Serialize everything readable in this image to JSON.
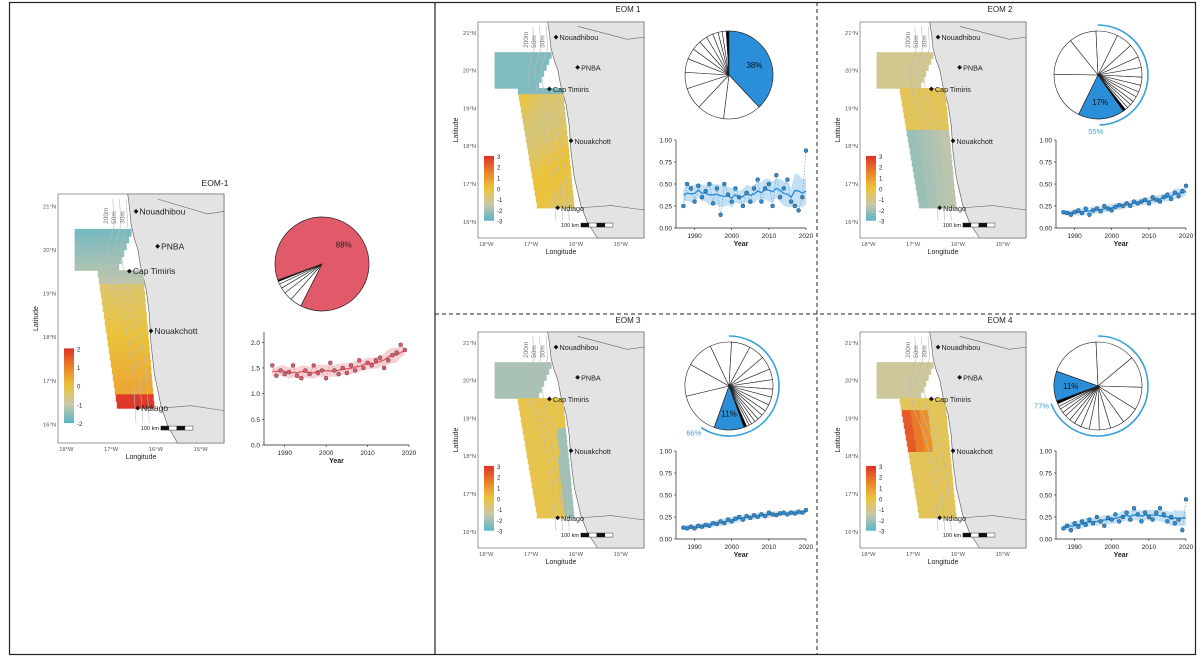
{
  "panels": [
    {
      "id": "eom1",
      "title": "EOM-1",
      "map": {
        "places": [
          "Nouadhibou",
          "PNBA",
          "Cap Timiris",
          "Nouakchott",
          "Ndiago"
        ],
        "depths": [
          "200m",
          "50m",
          "30m"
        ],
        "lat_ticks": [
          "21°N",
          "20°N",
          "19°N",
          "18°N",
          "17°N",
          "16°N"
        ],
        "lon_ticks": [
          "18°W",
          "17°W",
          "16°W",
          "15°W"
        ],
        "xlabel": "Longitude",
        "ylabel": "Latitude",
        "colorbar_ticks": [
          "2",
          "1",
          "0",
          "-1",
          "-2"
        ],
        "scale_label": "100 km"
      },
      "pie": {
        "highlight_pct": 88,
        "label": "88%",
        "color": "#e05a6a",
        "highlight_start_deg": 250,
        "other_slices_pct": [
          4,
          3,
          2,
          1.5,
          1,
          0.5
        ],
        "arc_label": ""
      },
      "chart_data": {
        "type": "line",
        "xlabel": "Year",
        "ylabel": "",
        "xlim": [
          1985,
          2020
        ],
        "ylim": [
          0,
          2.2
        ],
        "x_ticks": [
          1990,
          2000,
          2010,
          2020
        ],
        "y_ticks": [
          0.0,
          0.5,
          1.0,
          1.5,
          2.0
        ],
        "y_tick_labels": [
          "0.0",
          "0.5",
          "1.0",
          "1.5",
          "2.0"
        ],
        "color": "#e05a6a",
        "x": [
          1987,
          1988,
          1989,
          1990,
          1991,
          1992,
          1993,
          1994,
          1995,
          1996,
          1997,
          1998,
          1999,
          2000,
          2001,
          2002,
          2003,
          2004,
          2005,
          2006,
          2007,
          2008,
          2009,
          2010,
          2011,
          2012,
          2013,
          2014,
          2015,
          2016,
          2017,
          2018,
          2019
        ],
        "y": [
          1.55,
          1.35,
          1.45,
          1.38,
          1.42,
          1.55,
          1.35,
          1.3,
          1.45,
          1.38,
          1.55,
          1.4,
          1.45,
          1.3,
          1.6,
          1.45,
          1.38,
          1.5,
          1.4,
          1.55,
          1.45,
          1.65,
          1.5,
          1.6,
          1.55,
          1.65,
          1.7,
          1.5,
          1.65,
          1.75,
          1.8,
          1.95,
          1.85
        ]
      }
    },
    {
      "id": "eom2",
      "title": "EOM 1",
      "map": {
        "places": [
          "Nouadhibou",
          "PNBA",
          "Cap Timiris",
          "Nouakchott",
          "Ndiago"
        ],
        "depths": [
          "200m",
          "50m",
          "30m"
        ],
        "lat_ticks": [
          "21°N",
          "20°N",
          "19°N",
          "18°N",
          "17°N",
          "16°N"
        ],
        "lon_ticks": [
          "18°W",
          "17°W",
          "16°W",
          "15°W"
        ],
        "xlabel": "Longitude",
        "ylabel": "Latitude",
        "colorbar_ticks": [
          "3",
          "2",
          "1",
          "0",
          "-1",
          "-2",
          "-3"
        ],
        "scale_label": "100 km"
      },
      "pie": {
        "highlight_pct": 38,
        "label": "38%",
        "color": "#2a8fd8",
        "highlight_start_deg": 0,
        "other_slices_pct": [
          14,
          10,
          8,
          6,
          5,
          4,
          3.5,
          3,
          2.5,
          2,
          1.5,
          1.5,
          1
        ],
        "arc_label": ""
      },
      "chart_data": {
        "type": "line",
        "xlabel": "Year",
        "ylabel": "",
        "xlim": [
          1985,
          2020
        ],
        "ylim": [
          0,
          1.0
        ],
        "x_ticks": [
          1990,
          2000,
          2010,
          2020
        ],
        "y_ticks": [
          0.0,
          0.25,
          0.5,
          0.75,
          1.0
        ],
        "y_tick_labels": [
          "0.00",
          "0.25",
          "0.50",
          "0.75",
          "1.00"
        ],
        "color": "#2a8fd8",
        "x": [
          1987,
          1988,
          1989,
          1990,
          1991,
          1992,
          1993,
          1994,
          1995,
          1996,
          1997,
          1998,
          1999,
          2000,
          2001,
          2002,
          2003,
          2004,
          2005,
          2006,
          2007,
          2008,
          2009,
          2010,
          2011,
          2012,
          2013,
          2014,
          2015,
          2016,
          2017,
          2018,
          2019,
          2020
        ],
        "y": [
          0.25,
          0.5,
          0.45,
          0.3,
          0.48,
          0.35,
          0.42,
          0.5,
          0.28,
          0.45,
          0.15,
          0.5,
          0.38,
          0.3,
          0.45,
          0.35,
          0.25,
          0.4,
          0.3,
          0.45,
          0.55,
          0.3,
          0.45,
          0.5,
          0.25,
          0.6,
          0.35,
          0.45,
          0.55,
          0.3,
          0.25,
          0.2,
          0.35,
          0.88
        ]
      }
    },
    {
      "id": "eom3",
      "title": "EOM 2",
      "map": {
        "places": [
          "Nouadhibou",
          "PNBA",
          "Cap Timiris",
          "Nouakchott",
          "Ndiago"
        ],
        "depths": [
          "200m",
          "50m",
          "30m"
        ],
        "lat_ticks": [
          "21°N",
          "20°N",
          "19°N",
          "18°N",
          "17°N",
          "16°N"
        ],
        "lon_ticks": [
          "18°W",
          "17°W",
          "16°W",
          "15°W"
        ],
        "xlabel": "Longitude",
        "ylabel": "Latitude",
        "colorbar_ticks": [
          "3",
          "2",
          "1",
          "0",
          "-1",
          "-2",
          "-3"
        ],
        "scale_label": "100 km"
      },
      "pie": {
        "highlight_pct": 17,
        "label": "17%",
        "color": "#2a8fd8",
        "highlight_start_deg": 145,
        "other_slices_pct": [
          18,
          14,
          10,
          8,
          6,
          5,
          4,
          3.5,
          3,
          2.5,
          2,
          2,
          1.5,
          1.5,
          1,
          1
        ],
        "arc_label": "55%",
        "arc_start_deg": 0,
        "arc_pct": 55
      },
      "chart_data": {
        "type": "line",
        "xlabel": "Year",
        "ylabel": "",
        "xlim": [
          1985,
          2020
        ],
        "ylim": [
          0,
          1.0
        ],
        "x_ticks": [
          1990,
          2000,
          2010,
          2020
        ],
        "y_ticks": [
          0.0,
          0.25,
          0.5,
          0.75,
          1.0
        ],
        "y_tick_labels": [
          "0.00",
          "0.25",
          "0.50",
          "0.75",
          "1.00"
        ],
        "color": "#2a8fd8",
        "x": [
          1987,
          1988,
          1989,
          1990,
          1991,
          1992,
          1993,
          1994,
          1995,
          1996,
          1997,
          1998,
          1999,
          2000,
          2001,
          2002,
          2003,
          2004,
          2005,
          2006,
          2007,
          2008,
          2009,
          2010,
          2011,
          2012,
          2013,
          2014,
          2015,
          2016,
          2017,
          2018,
          2019,
          2020
        ],
        "y": [
          0.18,
          0.17,
          0.15,
          0.18,
          0.2,
          0.17,
          0.22,
          0.15,
          0.2,
          0.22,
          0.19,
          0.25,
          0.22,
          0.2,
          0.24,
          0.26,
          0.25,
          0.28,
          0.25,
          0.3,
          0.28,
          0.3,
          0.32,
          0.28,
          0.35,
          0.32,
          0.3,
          0.35,
          0.38,
          0.33,
          0.4,
          0.36,
          0.42,
          0.48
        ]
      }
    },
    {
      "id": "eom4",
      "title": "EOM 3",
      "map": {
        "places": [
          "Nouadhibou",
          "PNBA",
          "Cap Timiris",
          "Nouakchott",
          "Ndiago"
        ],
        "depths": [
          "200m",
          "50m",
          "30m"
        ],
        "lat_ticks": [
          "21°N",
          "20°N",
          "19°N",
          "18°N",
          "17°N",
          "16°N"
        ],
        "lon_ticks": [
          "18°W",
          "17°W",
          "16°W",
          "15°W"
        ],
        "xlabel": "Longitude",
        "ylabel": "Latitude",
        "colorbar_ticks": [
          "3",
          "2",
          "1",
          "0",
          "-1",
          "-2",
          "-3"
        ],
        "scale_label": "100 km"
      },
      "pie": {
        "highlight_pct": 11,
        "label": "11%",
        "color": "#2a8fd8",
        "highlight_start_deg": 160,
        "other_slices_pct": [
          16,
          12,
          10,
          8,
          7,
          6,
          5,
          4,
          3.5,
          3,
          3,
          2.5,
          2,
          2,
          1.5,
          1.5,
          1,
          1,
          1
        ],
        "arc_label": "66%",
        "arc_start_deg": 0,
        "arc_pct": 66
      },
      "chart_data": {
        "type": "line",
        "xlabel": "Year",
        "ylabel": "",
        "xlim": [
          1985,
          2020
        ],
        "ylim": [
          0,
          1.0
        ],
        "x_ticks": [
          1990,
          2000,
          2010,
          2020
        ],
        "y_ticks": [
          0.0,
          0.25,
          0.5,
          0.75,
          1.0
        ],
        "y_tick_labels": [
          "0.00",
          "0.25",
          "0.50",
          "0.75",
          "1.00"
        ],
        "color": "#2a8fd8",
        "x": [
          1987,
          1988,
          1989,
          1990,
          1991,
          1992,
          1993,
          1994,
          1995,
          1996,
          1997,
          1998,
          1999,
          2000,
          2001,
          2002,
          2003,
          2004,
          2005,
          2006,
          2007,
          2008,
          2009,
          2010,
          2011,
          2012,
          2013,
          2014,
          2015,
          2016,
          2017,
          2018,
          2019,
          2020
        ],
        "y": [
          0.13,
          0.12,
          0.14,
          0.12,
          0.15,
          0.14,
          0.16,
          0.15,
          0.18,
          0.17,
          0.2,
          0.18,
          0.22,
          0.2,
          0.23,
          0.25,
          0.22,
          0.26,
          0.24,
          0.27,
          0.25,
          0.28,
          0.26,
          0.3,
          0.28,
          0.27,
          0.29,
          0.3,
          0.28,
          0.3,
          0.29,
          0.31,
          0.3,
          0.33
        ]
      }
    },
    {
      "id": "eom5",
      "title": "EOM 4",
      "map": {
        "places": [
          "Nouadhibou",
          "PNBA",
          "Cap Timiris",
          "Nouakchott",
          "Ndiago"
        ],
        "depths": [
          "200m",
          "50m",
          "30m"
        ],
        "lat_ticks": [
          "21°N",
          "20°N",
          "19°N",
          "18°N",
          "17°N",
          "16°N"
        ],
        "lon_ticks": [
          "18°W",
          "17°W",
          "16°W",
          "15°W"
        ],
        "xlabel": "Longitude",
        "ylabel": "Latitude",
        "colorbar_ticks": [
          "3",
          "2",
          "1",
          "0",
          "-1",
          "-2",
          "-3"
        ],
        "scale_label": "100 km"
      },
      "pie": {
        "highlight_pct": 11,
        "label": "11%",
        "color": "#2a8fd8",
        "highlight_start_deg": 250,
        "other_slices_pct": [
          18,
          14,
          11,
          8,
          6,
          5,
          4,
          3.5,
          3,
          2.5,
          2,
          2,
          1.5,
          1.5,
          1,
          1,
          1
        ],
        "arc_label": "77%",
        "arc_start_deg": 0,
        "arc_pct": 77
      },
      "chart_data": {
        "type": "line",
        "xlabel": "Year",
        "ylabel": "",
        "xlim": [
          1985,
          2020
        ],
        "ylim": [
          0,
          1.0
        ],
        "x_ticks": [
          1990,
          2000,
          2010,
          2020
        ],
        "y_ticks": [
          0.0,
          0.25,
          0.5,
          0.75,
          1.0
        ],
        "y_tick_labels": [
          "0.00",
          "0.25",
          "0.50",
          "0.75",
          "1.00"
        ],
        "color": "#2a8fd8",
        "x": [
          1987,
          1988,
          1989,
          1990,
          1991,
          1992,
          1993,
          1994,
          1995,
          1996,
          1997,
          1998,
          1999,
          2000,
          2001,
          2002,
          2003,
          2004,
          2005,
          2006,
          2007,
          2008,
          2009,
          2010,
          2011,
          2012,
          2013,
          2014,
          2015,
          2016,
          2017,
          2018,
          2019,
          2020
        ],
        "y": [
          0.12,
          0.15,
          0.1,
          0.18,
          0.14,
          0.2,
          0.16,
          0.22,
          0.18,
          0.25,
          0.2,
          0.15,
          0.24,
          0.22,
          0.28,
          0.2,
          0.25,
          0.3,
          0.22,
          0.35,
          0.28,
          0.2,
          0.3,
          0.25,
          0.22,
          0.3,
          0.35,
          0.28,
          0.2,
          0.25,
          0.18,
          0.22,
          0.1,
          0.45
        ]
      }
    }
  ]
}
